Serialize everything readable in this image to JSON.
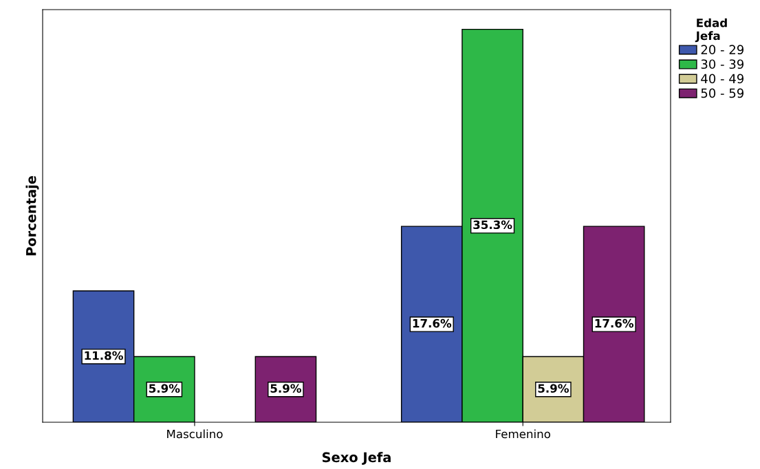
{
  "chart_data": {
    "type": "bar",
    "xlabel": "Sexo Jefa",
    "ylabel": "Porcentaje",
    "legend_title": "Edad\nJefa",
    "categories": [
      "Masculino",
      "Femenino"
    ],
    "series": [
      {
        "name": "20 - 29",
        "color": "#3e58ac",
        "values": [
          11.8,
          17.6
        ],
        "value_labels": [
          "11.8%",
          "17.6%"
        ]
      },
      {
        "name": "30 - 39",
        "color": "#2eb848",
        "values": [
          5.9,
          35.3
        ],
        "value_labels": [
          "5.9%",
          "35.3%"
        ]
      },
      {
        "name": "40 - 49",
        "color": "#d2cc96",
        "values": [
          null,
          5.9
        ],
        "value_labels": [
          null,
          "5.9%"
        ]
      },
      {
        "name": "50 - 59",
        "color": "#7d2270",
        "values": [
          5.9,
          17.6
        ],
        "value_labels": [
          "5.9%",
          "17.6%"
        ]
      }
    ],
    "tick_labels": "x",
    "grid": false,
    "legend": "right"
  }
}
